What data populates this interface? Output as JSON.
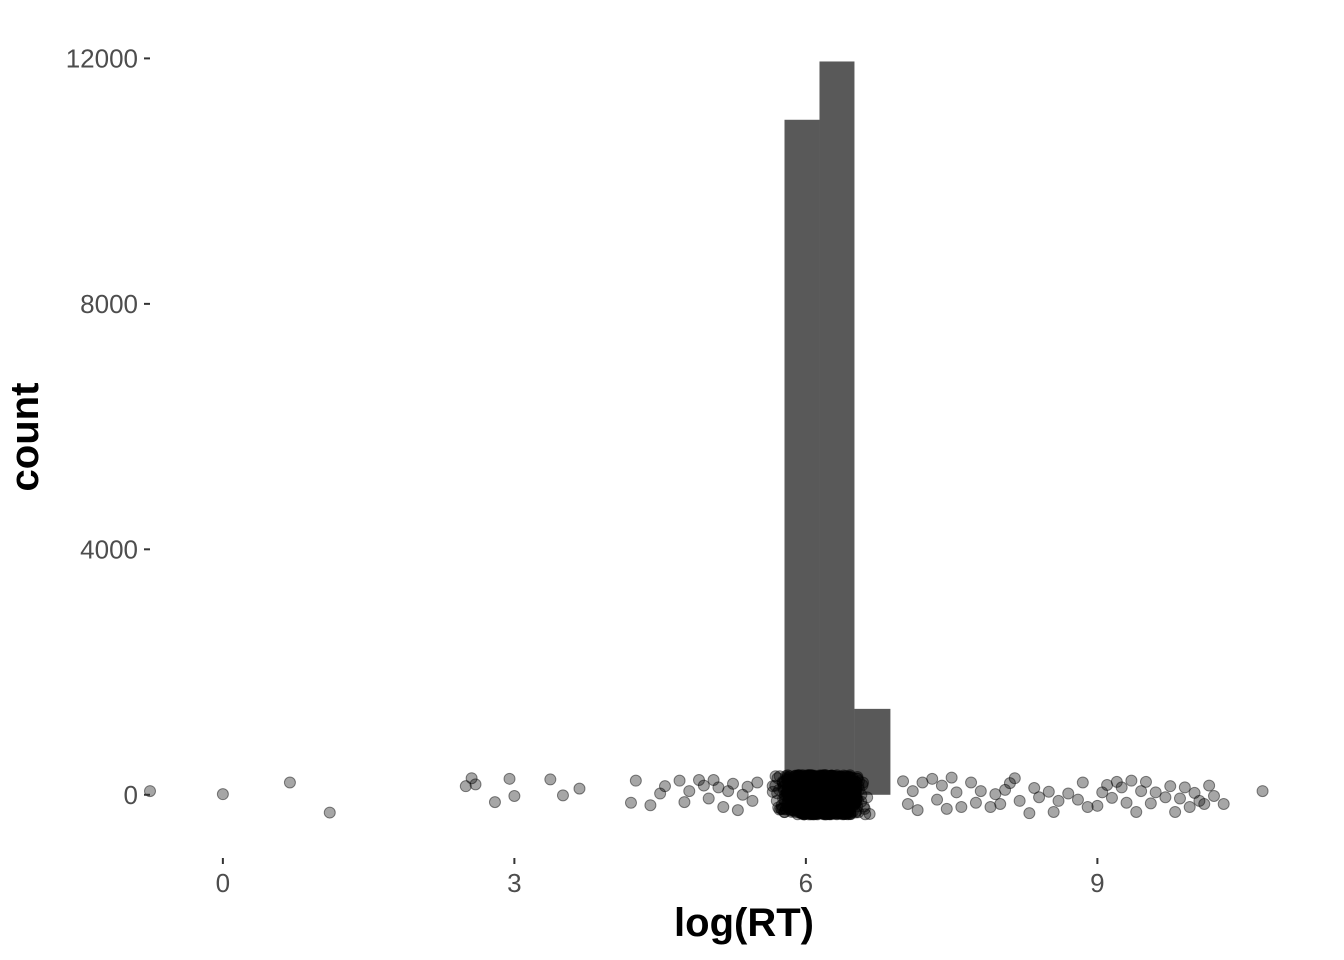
{
  "chart_data": {
    "type": "bar",
    "xlabel": "log(RT)",
    "ylabel": "count",
    "xlim": [
      -0.75,
      10.9
    ],
    "ylim": [
      -900,
      12300
    ],
    "x_ticks": [
      0,
      3,
      6,
      9
    ],
    "y_ticks": [
      0,
      4000,
      8000,
      12000
    ],
    "grid": false,
    "legend": "none",
    "colors": {
      "bar": "#595959",
      "point": "#000000",
      "tick_label": "#4d4d4d"
    },
    "bins": [
      {
        "x0": 5.78,
        "x1": 6.14,
        "count": 11000
      },
      {
        "x0": 6.14,
        "x1": 6.5,
        "count": 11950
      },
      {
        "x0": 6.5,
        "x1": 6.87,
        "count": 1400
      }
    ],
    "jitter_points": {
      "description_y_units": "counts (jittered around 0)",
      "sparse": [
        [
          -0.75,
          60
        ],
        [
          0.0,
          10
        ],
        [
          0.69,
          200
        ],
        [
          1.1,
          -290
        ],
        [
          2.5,
          140
        ],
        [
          2.56,
          270
        ],
        [
          2.6,
          170
        ],
        [
          2.8,
          -120
        ],
        [
          2.95,
          260
        ],
        [
          3.0,
          -20
        ],
        [
          3.37,
          250
        ],
        [
          3.5,
          -10
        ],
        [
          3.67,
          100
        ],
        [
          4.2,
          -130
        ],
        [
          4.25,
          230
        ],
        [
          4.4,
          -170
        ],
        [
          4.5,
          20
        ],
        [
          4.55,
          140
        ],
        [
          4.7,
          230
        ],
        [
          4.75,
          -120
        ],
        [
          4.8,
          60
        ],
        [
          4.9,
          240
        ],
        [
          4.95,
          150
        ],
        [
          5.0,
          -60
        ],
        [
          5.05,
          240
        ],
        [
          5.1,
          120
        ],
        [
          5.15,
          -200
        ],
        [
          5.2,
          60
        ],
        [
          5.25,
          180
        ],
        [
          5.3,
          -250
        ],
        [
          5.35,
          0
        ],
        [
          5.4,
          130
        ],
        [
          5.45,
          -100
        ],
        [
          5.5,
          200
        ],
        [
          7.0,
          220
        ],
        [
          7.05,
          -150
        ],
        [
          7.1,
          60
        ],
        [
          7.15,
          -250
        ],
        [
          7.2,
          200
        ],
        [
          7.3,
          260
        ],
        [
          7.35,
          -80
        ],
        [
          7.4,
          150
        ],
        [
          7.45,
          -230
        ],
        [
          7.5,
          280
        ],
        [
          7.55,
          40
        ],
        [
          7.6,
          -200
        ],
        [
          7.7,
          200
        ],
        [
          7.75,
          -130
        ],
        [
          7.8,
          60
        ],
        [
          7.9,
          -200
        ],
        [
          7.95,
          10
        ],
        [
          8.0,
          -150
        ],
        [
          8.05,
          80
        ],
        [
          8.1,
          190
        ],
        [
          8.15,
          270
        ],
        [
          8.2,
          -100
        ],
        [
          8.3,
          -300
        ],
        [
          8.35,
          110
        ],
        [
          8.4,
          -40
        ],
        [
          8.5,
          50
        ],
        [
          8.55,
          -280
        ],
        [
          8.6,
          -100
        ],
        [
          8.7,
          20
        ],
        [
          8.8,
          -80
        ],
        [
          8.85,
          200
        ],
        [
          8.9,
          -200
        ],
        [
          9.0,
          -180
        ],
        [
          9.05,
          40
        ],
        [
          9.1,
          160
        ],
        [
          9.15,
          -50
        ],
        [
          9.2,
          210
        ],
        [
          9.25,
          120
        ],
        [
          9.3,
          -130
        ],
        [
          9.35,
          230
        ],
        [
          9.4,
          -280
        ],
        [
          9.45,
          60
        ],
        [
          9.5,
          210
        ],
        [
          9.55,
          -140
        ],
        [
          9.6,
          40
        ],
        [
          9.7,
          -40
        ],
        [
          9.75,
          140
        ],
        [
          9.8,
          -280
        ],
        [
          9.85,
          -60
        ],
        [
          9.9,
          120
        ],
        [
          9.95,
          -200
        ],
        [
          10.0,
          30
        ],
        [
          10.05,
          -100
        ],
        [
          10.1,
          -150
        ],
        [
          10.15,
          150
        ],
        [
          10.2,
          -20
        ],
        [
          10.3,
          -150
        ],
        [
          10.7,
          60
        ]
      ],
      "dense_range": [
        5.6,
        7.0
      ],
      "dense_y_range": [
        -320,
        320
      ]
    }
  }
}
